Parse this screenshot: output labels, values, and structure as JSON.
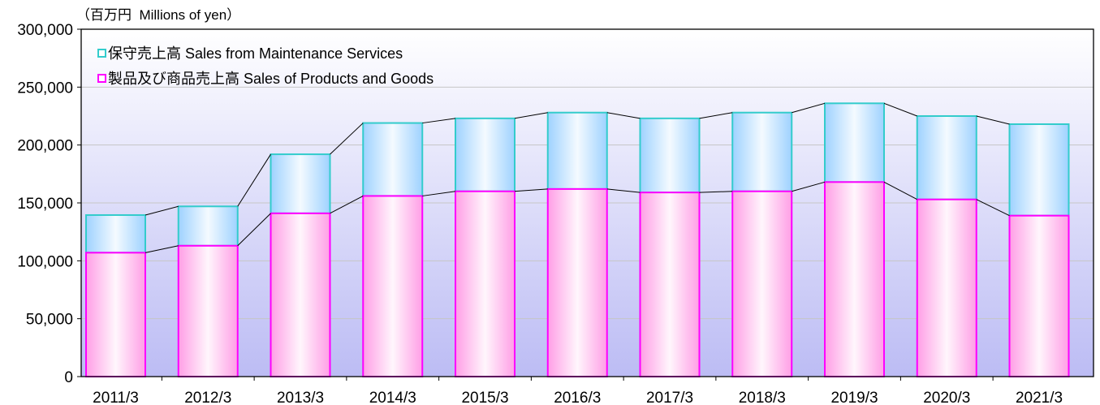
{
  "chart_data": {
    "type": "bar",
    "stacked": true,
    "categories": [
      "2011/3",
      "2012/3",
      "2013/3",
      "2014/3",
      "2015/3",
      "2016/3",
      "2017/3",
      "2018/3",
      "2019/3",
      "2020/3",
      "2021/3"
    ],
    "series": [
      {
        "name": "製品及び商品売上高 Sales of Products and Goods",
        "values": [
          107000,
          113000,
          141000,
          156000,
          160000,
          162000,
          159000,
          160000,
          168000,
          153000,
          139000
        ],
        "color": "#ff00ff",
        "fill": "#ff9ee6"
      },
      {
        "name": "保守売上高 Sales from Maintenance Services",
        "values": [
          32500,
          34000,
          51000,
          63000,
          63000,
          66000,
          64000,
          68000,
          68000,
          72000,
          79000
        ],
        "color": "#33cccc",
        "fill": "#9ed2ff"
      }
    ],
    "ylabel": "（百万円  Millions of yen）",
    "ylim": [
      0,
      300000
    ],
    "yticks": [
      0,
      50000,
      100000,
      150000,
      200000,
      250000,
      300000
    ],
    "ytick_labels": [
      "0",
      "50,000",
      "100,000",
      "150,000",
      "200,000",
      "250,000",
      "300,000"
    ],
    "grid": true,
    "legend_position": "top-left",
    "series_lines": true
  }
}
